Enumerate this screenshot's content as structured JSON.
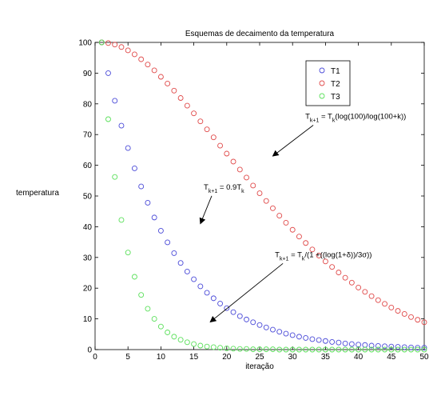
{
  "chart_data": {
    "type": "scatter",
    "title": "Esquemas de decaimento da temperatura",
    "xlabel": "iteração",
    "ylabel": "temperatura",
    "xlim": [
      0,
      50
    ],
    "ylim": [
      0,
      100
    ],
    "xticks": [
      0,
      5,
      10,
      15,
      20,
      25,
      30,
      35,
      40,
      45,
      50
    ],
    "yticks": [
      0,
      10,
      20,
      30,
      40,
      50,
      60,
      70,
      80,
      90,
      100
    ],
    "grid": false,
    "legend_position": "top-right",
    "series": [
      {
        "name": "T1",
        "color": "#4a4ad8",
        "x": [
          1,
          2,
          3,
          4,
          5,
          6,
          7,
          8,
          9,
          10,
          11,
          12,
          13,
          14,
          15,
          16,
          17,
          18,
          19,
          20,
          21,
          22,
          23,
          24,
          25,
          26,
          27,
          28,
          29,
          30,
          31,
          32,
          33,
          34,
          35,
          36,
          37,
          38,
          39,
          40,
          41,
          42,
          43,
          44,
          45,
          46,
          47,
          48,
          49,
          50
        ],
        "y": [
          100,
          90,
          81,
          72.9,
          65.6,
          59,
          53.1,
          47.8,
          43,
          38.7,
          34.9,
          31.4,
          28.2,
          25.4,
          22.9,
          20.6,
          18.5,
          16.7,
          15,
          13.5,
          12.2,
          10.9,
          9.8,
          8.9,
          8,
          7.2,
          6.5,
          5.8,
          5.2,
          4.7,
          4.2,
          3.8,
          3.4,
          3.1,
          2.8,
          2.5,
          2.3,
          2,
          1.8,
          1.6,
          1.5,
          1.3,
          1.2,
          1.1,
          1,
          0.9,
          0.8,
          0.7,
          0.6,
          0.6
        ]
      },
      {
        "name": "T2",
        "color": "#e04a4a",
        "x": [
          1,
          2,
          3,
          4,
          5,
          6,
          7,
          8,
          9,
          10,
          11,
          12,
          13,
          14,
          15,
          16,
          17,
          18,
          19,
          20,
          21,
          22,
          23,
          24,
          25,
          26,
          27,
          28,
          29,
          30,
          31,
          32,
          33,
          34,
          35,
          36,
          37,
          38,
          39,
          40,
          41,
          42,
          43,
          44,
          45,
          46,
          47,
          48,
          49,
          50
        ],
        "y": [
          100,
          99.8,
          99.3,
          98.5,
          97.4,
          96.1,
          94.5,
          92.8,
          90.9,
          88.8,
          86.6,
          84.3,
          81.9,
          79.4,
          76.9,
          74.3,
          71.7,
          69.1,
          66.4,
          63.8,
          61.2,
          58.6,
          56,
          53.4,
          50.9,
          48.4,
          46,
          43.6,
          41.3,
          39,
          36.8,
          34.7,
          32.6,
          30.6,
          28.7,
          26.9,
          25.1,
          23.4,
          21.8,
          20.2,
          18.8,
          17.4,
          16.1,
          14.9,
          13.7,
          12.6,
          11.6,
          10.6,
          9.7,
          8.9
        ]
      },
      {
        "name": "T3",
        "color": "#5ae05a",
        "x": [
          1,
          2,
          3,
          4,
          5,
          6,
          7,
          8,
          9,
          10,
          11,
          12,
          13,
          14,
          15,
          16,
          17,
          18,
          19,
          20,
          21,
          22,
          23,
          24,
          25,
          26,
          27,
          28,
          29,
          30,
          31,
          32,
          33,
          34,
          35,
          36,
          37,
          38,
          39,
          40,
          41,
          42,
          43,
          44,
          45,
          46,
          47,
          48,
          49,
          50
        ],
        "y": [
          100,
          75,
          56.2,
          42.2,
          31.6,
          23.7,
          17.8,
          13.3,
          10,
          7.5,
          5.6,
          4.2,
          3.2,
          2.4,
          1.8,
          1.3,
          1,
          0.8,
          0.6,
          0.4,
          0.3,
          0.2,
          0.2,
          0.1,
          0.1,
          0.1,
          0.1,
          0,
          0,
          0,
          0,
          0,
          0,
          0,
          0,
          0,
          0,
          0,
          0,
          0,
          0,
          0,
          0,
          0,
          0,
          0,
          0,
          0,
          0,
          0
        ]
      }
    ],
    "annotations": [
      {
        "id": "t2",
        "formula": "T_{k+1} = T_{k}(log(100)/log(100+k))",
        "x": 38,
        "y": 72,
        "arrow_to": [
          27,
          63
        ]
      },
      {
        "id": "t1",
        "formula": "T_{k+1} =  0.9T_{k}",
        "x": 25,
        "y": 49,
        "arrow_to": [
          16,
          41
        ]
      },
      {
        "id": "t3",
        "formula": "T_{k+1} = T_{k}/(1 +((log(1+δ))/3σ))",
        "x": 34,
        "y": 27,
        "arrow_to": [
          17.5,
          9
        ]
      }
    ]
  }
}
